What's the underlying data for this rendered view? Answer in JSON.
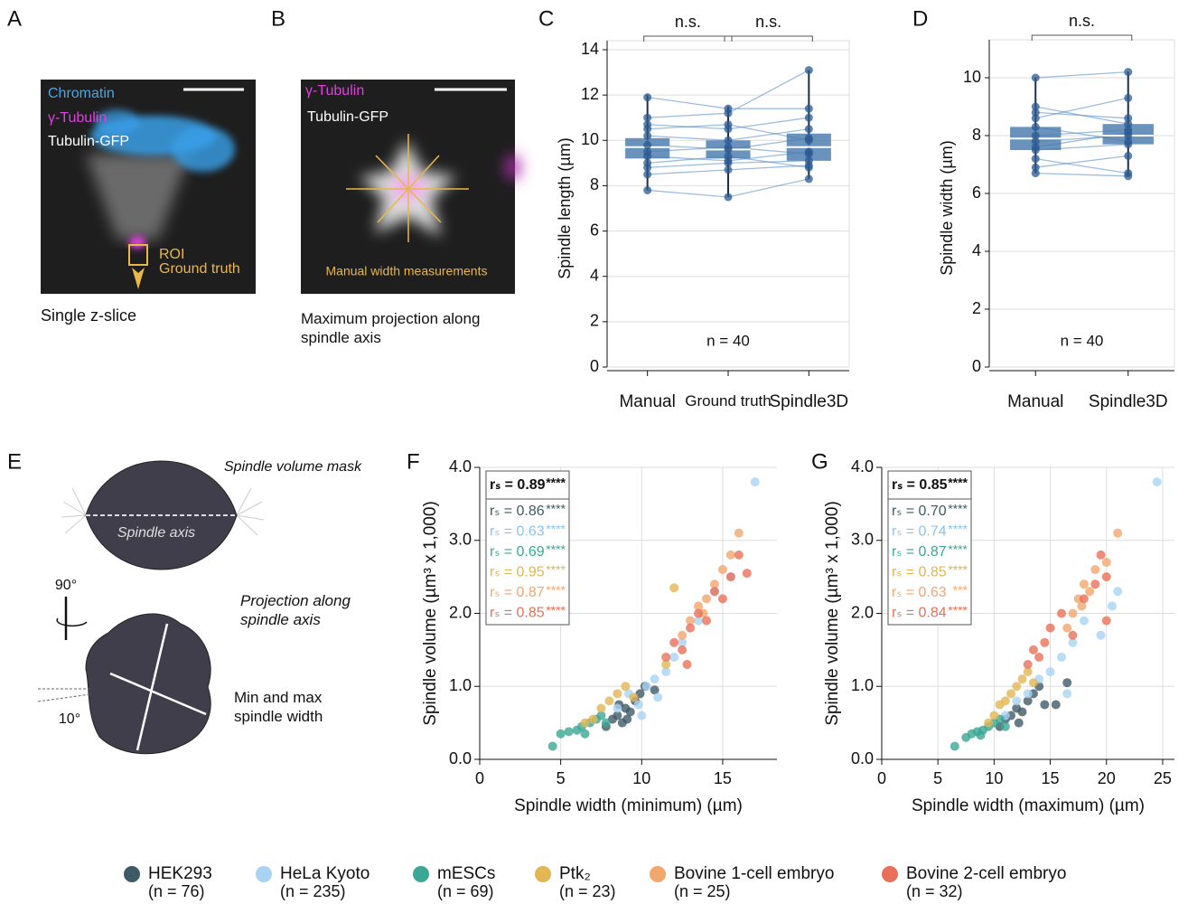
{
  "panel_labels": [
    "A",
    "B",
    "C",
    "D",
    "E",
    "F",
    "G"
  ],
  "image_a": {
    "labels": [
      "Chromatin",
      "γ-Tubulin",
      "Tubulin-GFP"
    ],
    "roi": "ROI",
    "roi_sub": "Ground truth",
    "caption": "Single z-slice"
  },
  "image_b": {
    "labels": [
      "γ-Tubulin",
      "Tubulin-GFP"
    ],
    "note": "Manual width measurements",
    "caption": "Maximum projection along spindle axis"
  },
  "diagram_e": {
    "mask_label": "Spindle volume mask",
    "axis_label": "Spindle axis",
    "rotation": "90°",
    "projection_label": "Projection along spindle axis",
    "width_label": "Min and max spindle width",
    "angle": "10°"
  },
  "chart_data": [
    {
      "type": "box",
      "y_label": "Spindle length (µm)",
      "categories": [
        "Manual",
        "Ground truth",
        "Spindle3D"
      ],
      "ylim": [
        0,
        14
      ],
      "yticks": [
        0,
        2,
        4,
        6,
        8,
        10,
        12,
        14
      ],
      "grid": true,
      "color": "#4f7fb0",
      "boxes": [
        {
          "low": 7.8,
          "q1": 9.2,
          "median": 9.7,
          "q3": 10.1,
          "high": 12.0
        },
        {
          "low": 7.5,
          "q1": 9.2,
          "median": 9.6,
          "q3": 10.0,
          "high": 11.5
        },
        {
          "low": 8.3,
          "q1": 9.1,
          "median": 9.7,
          "q3": 10.3,
          "high": 13.1
        }
      ],
      "paired_values": [
        [
          9.5,
          9.7,
          9.4
        ],
        [
          10.2,
          10.0,
          10.5
        ],
        [
          9.0,
          9.3,
          8.8
        ],
        [
          11.9,
          11.4,
          11.4
        ],
        [
          7.8,
          7.5,
          8.3
        ],
        [
          10.7,
          10.5,
          11.0
        ],
        [
          9.8,
          9.6,
          10.1
        ],
        [
          8.8,
          9.0,
          9.1
        ],
        [
          11.0,
          11.2,
          13.1
        ],
        [
          9.3,
          9.1,
          9.5
        ],
        [
          10.5,
          10.7,
          10.0
        ],
        [
          8.5,
          8.7,
          8.9
        ]
      ],
      "brackets": [
        "n.s.",
        "n.s."
      ],
      "annotation": "n = 40"
    },
    {
      "type": "box",
      "y_label": "Spindle width (µm)",
      "categories": [
        "Manual",
        "Spindle3D"
      ],
      "ylim": [
        0,
        11
      ],
      "yticks": [
        0,
        2,
        4,
        6,
        8,
        10
      ],
      "grid": true,
      "color": "#4f7fb0",
      "boxes": [
        {
          "low": 6.7,
          "q1": 7.5,
          "median": 7.9,
          "q3": 8.3,
          "high": 10.0
        },
        {
          "low": 6.6,
          "q1": 7.7,
          "median": 8.0,
          "q3": 8.4,
          "high": 10.2
        }
      ],
      "paired_values": [
        [
          10.0,
          10.2
        ],
        [
          6.7,
          6.6
        ],
        [
          8.0,
          8.2
        ],
        [
          7.5,
          7.7
        ],
        [
          8.6,
          9.3
        ],
        [
          7.2,
          6.7
        ],
        [
          9.0,
          8.4
        ],
        [
          8.3,
          7.8
        ],
        [
          7.8,
          8.0
        ],
        [
          6.9,
          7.3
        ],
        [
          8.8,
          8.6
        ],
        [
          7.6,
          8.1
        ]
      ],
      "brackets": [
        "n.s."
      ],
      "annotation": "n = 40"
    },
    {
      "type": "scatter",
      "x_label": "Spindle width (minimum) (µm)",
      "y_label": "Spindle volume (µm³ x 1,000)",
      "xlim": [
        0,
        18.35
      ],
      "ylim": [
        0,
        4
      ],
      "xticks": [
        0,
        5,
        10,
        15
      ],
      "yticks": [
        {
          "value": 0,
          "label": "0.0"
        },
        {
          "value": 1,
          "label": "1.0"
        },
        {
          "value": 2,
          "label": "2.0"
        },
        {
          "value": 3,
          "label": "3.0"
        },
        {
          "value": 4,
          "label": "4.0"
        }
      ],
      "grid": true,
      "overall": {
        "label": "rₛ = 0.89",
        "stars": "****"
      },
      "series": [
        {
          "rs_label": "rₛ = 0.86",
          "stars": "****",
          "x": [
            7.8,
            8.2,
            8.5,
            8.8,
            9.0,
            9.3,
            9.6,
            9.9,
            10.2,
            8.6,
            9.1,
            10.8
          ],
          "values": [
            0.45,
            0.55,
            0.6,
            0.5,
            0.7,
            0.65,
            0.8,
            0.9,
            1.0,
            0.75,
            0.55,
            0.95
          ]
        },
        {
          "rs_label": "rₛ = 0.63",
          "stars": "****",
          "x": [
            8.5,
            9.2,
            9.8,
            10.3,
            10.8,
            11.5,
            12.0,
            12.5,
            13.5,
            14.5,
            15.5,
            17.0,
            10.0,
            11.0
          ],
          "values": [
            0.7,
            0.9,
            0.75,
            1.0,
            1.1,
            1.2,
            1.4,
            1.6,
            1.9,
            2.3,
            2.5,
            3.8,
            0.6,
            0.85
          ]
        },
        {
          "rs_label": "rₛ = 0.69",
          "stars": "****",
          "x": [
            4.5,
            5.0,
            5.5,
            6.0,
            6.3,
            6.8,
            7.2,
            7.5,
            6.5,
            7.8
          ],
          "values": [
            0.18,
            0.35,
            0.38,
            0.4,
            0.45,
            0.5,
            0.55,
            0.6,
            0.35,
            0.5
          ]
        },
        {
          "rs_label": "rₛ = 0.95",
          "stars": "****",
          "x": [
            6.5,
            7.0,
            7.5,
            8.0,
            8.5,
            9.0,
            11.5,
            12.0,
            9.5
          ],
          "values": [
            0.5,
            0.55,
            0.7,
            0.8,
            0.9,
            1.0,
            1.3,
            2.35,
            0.85
          ]
        },
        {
          "rs_label": "rₛ = 0.87",
          "stars": "****",
          "x": [
            12.5,
            13.0,
            13.5,
            14.0,
            14.5,
            15.0,
            15.5,
            16.0,
            13.8
          ],
          "values": [
            1.7,
            1.9,
            2.1,
            2.2,
            2.4,
            2.6,
            2.8,
            3.1,
            2.0
          ]
        },
        {
          "rs_label": "rₛ = 0.85",
          "stars": "****",
          "x": [
            11.5,
            12.0,
            12.5,
            13.0,
            13.5,
            14.0,
            14.5,
            15.0,
            15.5,
            16.0,
            16.5,
            12.8
          ],
          "values": [
            1.4,
            1.6,
            1.5,
            1.8,
            2.0,
            1.9,
            2.3,
            2.2,
            2.5,
            2.8,
            2.55,
            1.3
          ]
        }
      ]
    },
    {
      "type": "scatter",
      "x_label": "Spindle width (maximum) (µm)",
      "y_label": "Spindle volume (µm³ x 1,000)",
      "xlim": [
        0,
        26.05
      ],
      "ylim": [
        0,
        4
      ],
      "xticks": [
        0,
        5,
        10,
        15,
        20,
        25
      ],
      "yticks": [
        {
          "value": 0,
          "label": "0.0"
        },
        {
          "value": 1,
          "label": "1.0"
        },
        {
          "value": 2,
          "label": "2.0"
        },
        {
          "value": 3,
          "label": "3.0"
        },
        {
          "value": 4,
          "label": "4.0"
        }
      ],
      "grid": true,
      "overall": {
        "label": "rₛ = 0.85",
        "stars": "****"
      },
      "series": [
        {
          "rs_label": "rₛ = 0.70",
          "stars": "****",
          "x": [
            10.5,
            11.0,
            11.5,
            12.0,
            12.5,
            13.0,
            13.5,
            14.0,
            14.5,
            15.5,
            16.5,
            12.2
          ],
          "values": [
            0.45,
            0.55,
            0.6,
            0.7,
            0.65,
            0.8,
            0.9,
            1.0,
            0.75,
            0.75,
            1.05,
            0.5
          ]
        },
        {
          "rs_label": "rₛ = 0.74",
          "stars": "****",
          "x": [
            11.0,
            12.0,
            13.0,
            14.0,
            15.0,
            16.0,
            17.0,
            18.0,
            19.5,
            20.5,
            21.0,
            24.5,
            16.5
          ],
          "values": [
            0.6,
            0.8,
            0.9,
            1.1,
            1.2,
            1.4,
            1.6,
            1.9,
            1.7,
            2.1,
            2.3,
            3.8,
            0.9
          ]
        },
        {
          "rs_label": "rₛ = 0.87",
          "stars": "****",
          "x": [
            6.5,
            7.5,
            8.0,
            8.5,
            9.0,
            9.5,
            10.0,
            10.5,
            11.0,
            8.8
          ],
          "values": [
            0.18,
            0.3,
            0.35,
            0.38,
            0.4,
            0.45,
            0.5,
            0.55,
            0.45,
            0.33
          ]
        },
        {
          "rs_label": "rₛ = 0.85",
          "stars": "****",
          "x": [
            9.5,
            10.0,
            10.5,
            11.0,
            11.5,
            12.0,
            12.5,
            13.0,
            13.5
          ],
          "values": [
            0.5,
            0.6,
            0.75,
            0.8,
            0.9,
            1.0,
            1.1,
            1.2,
            1.05
          ]
        },
        {
          "rs_label": "rₛ = 0.63",
          "stars": "***",
          "x": [
            16.5,
            17.0,
            17.5,
            18.0,
            18.5,
            19.0,
            20.0,
            21.0,
            17.8
          ],
          "values": [
            1.8,
            2.0,
            2.2,
            2.4,
            2.3,
            2.6,
            2.7,
            3.1,
            2.1
          ]
        },
        {
          "rs_label": "rₛ = 0.84",
          "stars": "****",
          "x": [
            13.0,
            13.5,
            14.0,
            14.5,
            15.0,
            16.0,
            17.0,
            18.0,
            19.0,
            19.5,
            20.0,
            20.0
          ],
          "values": [
            1.3,
            1.5,
            1.4,
            1.6,
            1.8,
            2.0,
            1.7,
            2.2,
            2.4,
            2.8,
            2.5,
            1.9
          ]
        }
      ]
    }
  ],
  "legend": [
    {
      "name": "HEK293",
      "n_label": "(n = 76)",
      "color": "#3e5a66"
    },
    {
      "name": "HeLa Kyoto",
      "n_label": "(n = 235)",
      "color": "#a9d3f3"
    },
    {
      "name": "mESCs",
      "n_label": "(n = 69)",
      "color": "#3aa894"
    },
    {
      "name": "Ptk₂",
      "n_label": "(n = 23)",
      "color": "#e2b652"
    },
    {
      "name": "Bovine 1-cell embryo",
      "n_label": "(n = 25)",
      "color": "#f3a66d"
    },
    {
      "name": "Bovine 2-cell embryo",
      "n_label": "(n = 32)",
      "color": "#e8705a"
    }
  ]
}
